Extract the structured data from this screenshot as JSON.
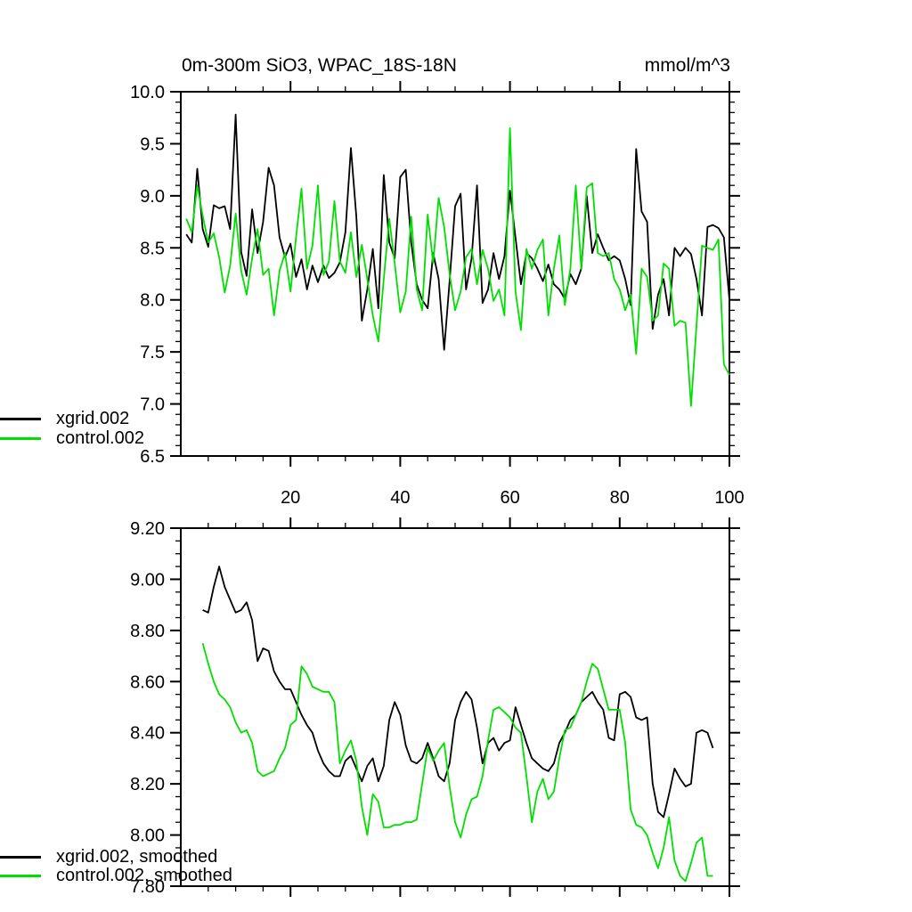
{
  "figure": {
    "background": "#ffffff",
    "black": "#000000",
    "green": "#00e000"
  },
  "chart_data": [
    {
      "type": "line",
      "panel": "top",
      "title": "0m-300m SiO3, WPAC_18S-18N",
      "units": "mmol/m^3",
      "grid": false,
      "x": {
        "min": 0,
        "max": 100,
        "minor_step": 5,
        "major_ticks": [
          20,
          40,
          60,
          80,
          100
        ],
        "tick_labels": [
          "20",
          "40",
          "60",
          "80",
          "100"
        ],
        "show_labels": true
      },
      "y": {
        "min": 6.5,
        "max": 10.0,
        "minor_step": 0.1,
        "major_ticks": [
          6.5,
          7.0,
          7.5,
          8.0,
          8.5,
          9.0,
          9.5,
          10.0
        ],
        "tick_labels": [
          "6.5",
          "7.0",
          "7.5",
          "8.0",
          "8.5",
          "9.0",
          "9.5",
          "10.0"
        ]
      },
      "legend": {
        "position": "lower-left",
        "items": [
          {
            "label": "xgrid.002",
            "color": "#000000"
          },
          {
            "label": "control.002",
            "color": "#00e000"
          }
        ]
      },
      "series": [
        {
          "name": "xgrid.002",
          "color": "#000000",
          "x_start": 1,
          "x_step": 1,
          "values": [
            8.63,
            8.55,
            9.26,
            8.68,
            8.51,
            8.91,
            8.88,
            8.9,
            8.68,
            9.78,
            8.46,
            8.23,
            8.87,
            8.45,
            8.75,
            9.27,
            9.1,
            8.6,
            8.41,
            8.54,
            8.22,
            8.39,
            8.1,
            8.33,
            8.17,
            8.33,
            8.21,
            8.26,
            8.36,
            8.65,
            9.46,
            8.8,
            7.8,
            8.1,
            8.49,
            7.92,
            9.2,
            8.55,
            8.4,
            9.18,
            9.25,
            8.55,
            8.15,
            8.0,
            7.92,
            8.45,
            8.2,
            7.52,
            8.18,
            8.9,
            9.02,
            8.1,
            8.4,
            9.1,
            7.97,
            8.1,
            8.45,
            8.2,
            8.42,
            9.05,
            8.6,
            8.15,
            8.45,
            8.4,
            8.3,
            8.18,
            8.34,
            8.15,
            8.1,
            8.01,
            8.25,
            8.15,
            8.3,
            9.0,
            8.45,
            8.63,
            8.5,
            8.38,
            8.42,
            8.38,
            8.2,
            7.95,
            9.45,
            8.85,
            8.75,
            7.72,
            8.05,
            8.2,
            7.85,
            8.5,
            8.42,
            8.5,
            8.44,
            8.2,
            7.85,
            8.7,
            8.72,
            8.69,
            8.6,
            8.0
          ]
        },
        {
          "name": "control.002",
          "color": "#00e000",
          "x_start": 1,
          "x_step": 1,
          "values": [
            8.78,
            8.65,
            9.1,
            8.81,
            8.55,
            8.64,
            8.41,
            8.07,
            8.33,
            8.83,
            8.28,
            8.05,
            8.4,
            8.68,
            8.24,
            8.3,
            7.85,
            8.28,
            8.45,
            8.08,
            8.6,
            9.07,
            8.3,
            8.52,
            9.1,
            8.24,
            8.37,
            8.95,
            8.37,
            8.26,
            8.65,
            8.22,
            8.53,
            8.2,
            7.85,
            7.6,
            8.2,
            8.78,
            8.35,
            7.88,
            8.08,
            8.8,
            8.1,
            7.9,
            8.82,
            8.35,
            8.98,
            8.7,
            8.25,
            7.9,
            8.08,
            8.41,
            8.49,
            8.15,
            8.48,
            8.3,
            7.99,
            8.1,
            7.85,
            9.65,
            8.08,
            7.71,
            8.49,
            8.3,
            8.48,
            8.58,
            7.85,
            8.3,
            8.62,
            7.95,
            8.3,
            9.1,
            8.3,
            9.08,
            9.12,
            8.45,
            8.42,
            8.45,
            8.2,
            8.1,
            7.9,
            8.05,
            7.48,
            8.3,
            8.22,
            7.8,
            7.85,
            8.35,
            8.3,
            7.75,
            7.8,
            7.78,
            6.98,
            7.75,
            8.52,
            8.5,
            8.48,
            8.58,
            7.38,
            7.28
          ]
        }
      ]
    },
    {
      "type": "line",
      "panel": "bottom",
      "title": "",
      "units": "",
      "grid": false,
      "x": {
        "min": 0,
        "max": 100,
        "minor_step": 5,
        "major_ticks": [
          20,
          40,
          60,
          80,
          100
        ],
        "tick_labels": [],
        "show_labels": false
      },
      "y": {
        "min": 7.8,
        "max": 9.2,
        "minor_step": 0.05,
        "major_ticks": [
          7.8,
          8.0,
          8.2,
          8.4,
          8.6,
          8.8,
          9.0,
          9.2
        ],
        "tick_labels": [
          "7.80",
          "8.00",
          "8.20",
          "8.40",
          "8.60",
          "8.80",
          "9.00",
          "9.20"
        ]
      },
      "legend": {
        "position": "lower-left",
        "items": [
          {
            "label": "xgrid.002, smoothed",
            "color": "#000000"
          },
          {
            "label": "control.002, smoothed",
            "color": "#00e000"
          }
        ]
      },
      "series": [
        {
          "name": "xgrid.002, smoothed",
          "color": "#000000",
          "x_start": 4,
          "x_step": 1,
          "values": [
            8.88,
            8.87,
            8.97,
            9.05,
            8.97,
            8.92,
            8.87,
            8.88,
            8.91,
            8.84,
            8.68,
            8.73,
            8.72,
            8.64,
            8.6,
            8.57,
            8.57,
            8.52,
            8.47,
            8.43,
            8.4,
            8.33,
            8.28,
            8.25,
            8.23,
            8.23,
            8.29,
            8.31,
            8.26,
            8.21,
            8.27,
            8.3,
            8.21,
            8.27,
            8.45,
            8.52,
            8.47,
            8.35,
            8.29,
            8.28,
            8.3,
            8.36,
            8.3,
            8.23,
            8.21,
            8.28,
            8.45,
            8.52,
            8.56,
            8.53,
            8.42,
            8.28,
            8.36,
            8.38,
            8.33,
            8.36,
            8.37,
            8.5,
            8.43,
            8.36,
            8.3,
            8.28,
            8.26,
            8.25,
            8.28,
            8.36,
            8.4,
            8.45,
            8.47,
            8.52,
            8.54,
            8.56,
            8.52,
            8.49,
            8.38,
            8.37,
            8.55,
            8.56,
            8.54,
            8.46,
            8.45,
            8.46,
            8.2,
            8.09,
            8.07,
            8.16,
            8.26,
            8.22,
            8.19,
            8.2,
            8.4,
            8.41,
            8.4,
            8.34
          ]
        },
        {
          "name": "control.002, smoothed",
          "color": "#00e000",
          "x_start": 4,
          "x_step": 1,
          "values": [
            8.75,
            8.67,
            8.6,
            8.55,
            8.53,
            8.5,
            8.44,
            8.4,
            8.41,
            8.36,
            8.25,
            8.23,
            8.24,
            8.25,
            8.3,
            8.34,
            8.43,
            8.45,
            8.66,
            8.63,
            8.58,
            8.57,
            8.56,
            8.56,
            8.52,
            8.28,
            8.33,
            8.37,
            8.29,
            8.11,
            8.0,
            8.16,
            8.13,
            8.03,
            8.03,
            8.04,
            8.04,
            8.05,
            8.05,
            8.06,
            8.2,
            8.34,
            8.29,
            8.33,
            8.36,
            8.19,
            8.05,
            7.99,
            8.08,
            8.14,
            8.15,
            8.23,
            8.37,
            8.49,
            8.5,
            8.48,
            8.46,
            8.42,
            8.4,
            8.23,
            8.05,
            8.17,
            8.22,
            8.14,
            8.17,
            8.3,
            8.41,
            8.42,
            8.47,
            8.52,
            8.6,
            8.67,
            8.65,
            8.57,
            8.49,
            8.49,
            8.49,
            8.36,
            8.1,
            8.04,
            8.03,
            8.0,
            7.93,
            7.87,
            7.95,
            8.07,
            7.9,
            7.84,
            7.82,
            7.89,
            7.97,
            7.99,
            7.84,
            7.84
          ]
        }
      ]
    }
  ]
}
